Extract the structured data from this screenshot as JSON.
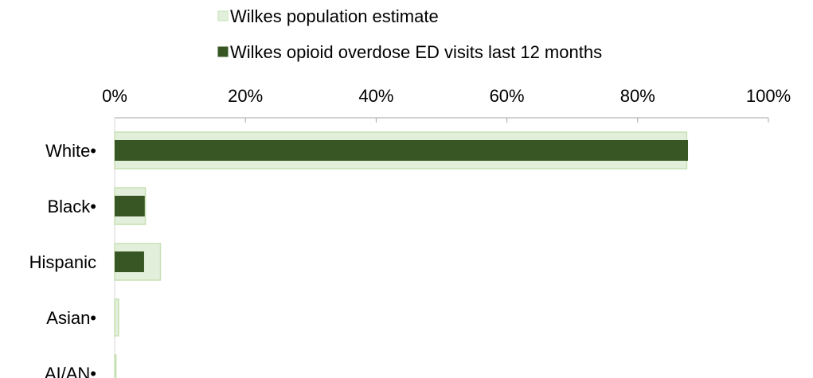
{
  "chart_data": {
    "type": "bar",
    "orientation": "horizontal",
    "categories": [
      "White•",
      "Black•",
      "Hispanic",
      "Asian•",
      "AI/AN•"
    ],
    "series": [
      {
        "name": "Wilkes population estimate",
        "values": [
          87.5,
          4.7,
          7.0,
          0.6,
          0.2
        ],
        "color": "#e2efda",
        "border_color": "#c6e0b4"
      },
      {
        "name": "Wilkes opioid overdose ED visits last 12 months",
        "values": [
          87.7,
          4.6,
          4.5,
          0,
          0
        ],
        "color": "#375623"
      }
    ],
    "xaxis": {
      "ticks": [
        0,
        20,
        40,
        60,
        80,
        100
      ],
      "tick_labels": [
        "0%",
        "20%",
        "40%",
        "60%",
        "80%",
        "100%"
      ],
      "range": [
        0,
        100
      ],
      "position": "top"
    },
    "grid": false,
    "legend_position": "top"
  }
}
